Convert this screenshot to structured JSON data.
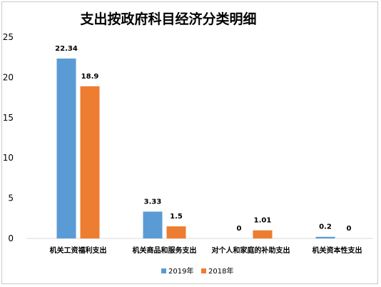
{
  "chart_data": {
    "type": "bar",
    "title": "支出按政府科目经济分类明细",
    "categories": [
      "机关工资福利支出",
      "机关商品和服务支出",
      "对个人和家庭的补助支出",
      "机关资本性支出"
    ],
    "series": [
      {
        "name": "2019年",
        "color": "#5b9bd5",
        "values": [
          22.34,
          3.33,
          0,
          0.2
        ]
      },
      {
        "name": "2018年",
        "color": "#ed7d31",
        "values": [
          18.9,
          1.5,
          1.01,
          0
        ]
      }
    ],
    "data_labels": [
      [
        "22.34",
        "3.33",
        "0",
        "0.2"
      ],
      [
        "18.9",
        "1.5",
        "1.01",
        "0"
      ]
    ],
    "yticks": [
      "0",
      "5",
      "10",
      "15",
      "20",
      "25"
    ],
    "ylim": [
      0,
      25
    ],
    "xlabel": "",
    "ylabel": "",
    "grid": false,
    "legend": "bottom"
  }
}
